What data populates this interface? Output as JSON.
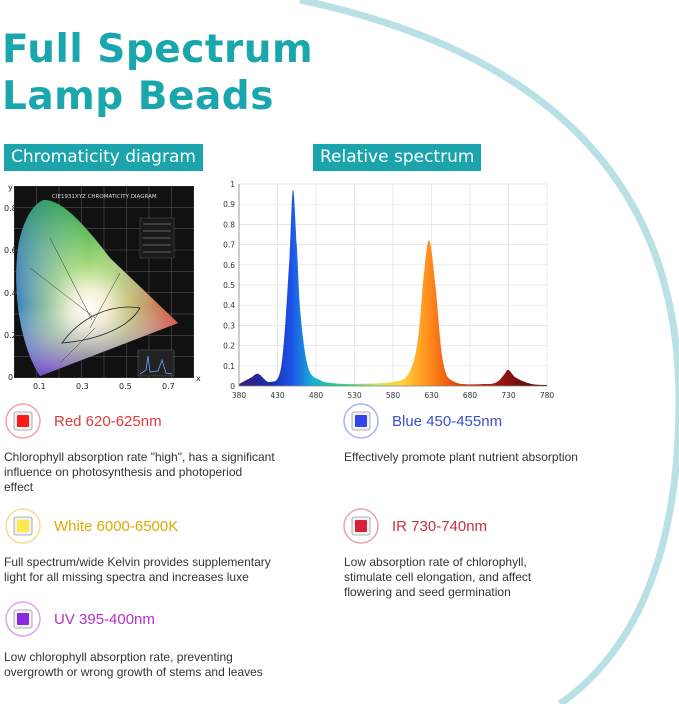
{
  "title": {
    "line1": "Full Spectrum",
    "line2": "Lamp Beads"
  },
  "sections": {
    "chromaticity": "Chromaticity diagram",
    "spectrum": "Relative spectrum"
  },
  "chromaticity_diagram": {
    "title": "CIE1931XYZ CHROMATICITY DIAGRAM",
    "x_axis_letter": "x",
    "y_axis_letter": "y",
    "x_ticks": [
      "0.1",
      "0.3",
      "0.5",
      "0.7"
    ],
    "y_ticks": [
      "0.8",
      "0.6",
      "0.4",
      "0.2",
      "0"
    ]
  },
  "chart_data": {
    "type": "line",
    "xlim": [
      380,
      780
    ],
    "ylim": [
      0,
      1
    ],
    "x_ticks": [
      380,
      430,
      480,
      530,
      580,
      630,
      680,
      730,
      780
    ],
    "y_ticks": [
      0,
      0.1,
      0.2,
      0.3,
      0.4,
      0.5,
      0.6,
      0.7,
      0.8,
      0.9,
      1
    ],
    "grid": true,
    "series": [
      {
        "x": [
          380,
          395,
          405,
          420,
          435,
          445,
          450,
          455,
          460,
          470,
          485,
          500,
          530,
          580,
          600,
          612,
          620,
          627,
          635,
          645,
          660,
          700,
          715,
          725,
          730,
          740,
          760,
          780
        ],
        "y": [
          0.01,
          0.04,
          0.06,
          0.02,
          0.1,
          0.6,
          0.97,
          0.7,
          0.35,
          0.09,
          0.03,
          0.015,
          0.01,
          0.02,
          0.06,
          0.22,
          0.55,
          0.72,
          0.5,
          0.12,
          0.02,
          0.01,
          0.02,
          0.06,
          0.08,
          0.04,
          0.01,
          0.005
        ]
      }
    ]
  },
  "leds": [
    {
      "name": "Red 620-625nm",
      "color": "#ff1a1a",
      "text_color": "#e03a3a",
      "ring_color": "#f4a3a3",
      "desc": [
        "Chlorophyll absorption rate \"high\", has a significant",
        "influence on photosynthesis and photoperiod",
        "effect"
      ]
    },
    {
      "name": "Blue 450-455nm",
      "color": "#3344ee",
      "text_color": "#3b50c8",
      "ring_color": "#a9b4ee",
      "desc": [
        "Effectively promote plant nutrient absorption"
      ]
    },
    {
      "name": "White 6000-6500K",
      "color": "#ffe94a",
      "text_color": "#e0a800",
      "ring_color": "#f4dd8f",
      "desc": [
        "Full spectrum/wide Kelvin provides supplementary",
        "light for all missing spectra and increases luxe"
      ]
    },
    {
      "name": "IR 730-740nm",
      "color": "#d8203a",
      "text_color": "#c33246",
      "ring_color": "#eaa2ac",
      "desc": [
        "Low absorption rate of chlorophyll,",
        "stimulate cell elongation, and affect",
        "flowering and seed germination"
      ]
    },
    {
      "name": "UV 395-400nm",
      "color": "#8a2ae0",
      "text_color": "#b630c4",
      "ring_color": "#dea6ea",
      "desc": [
        "Low chlorophyll absorption rate, preventing",
        "overgrowth or wrong growth of stems and leaves"
      ]
    }
  ]
}
